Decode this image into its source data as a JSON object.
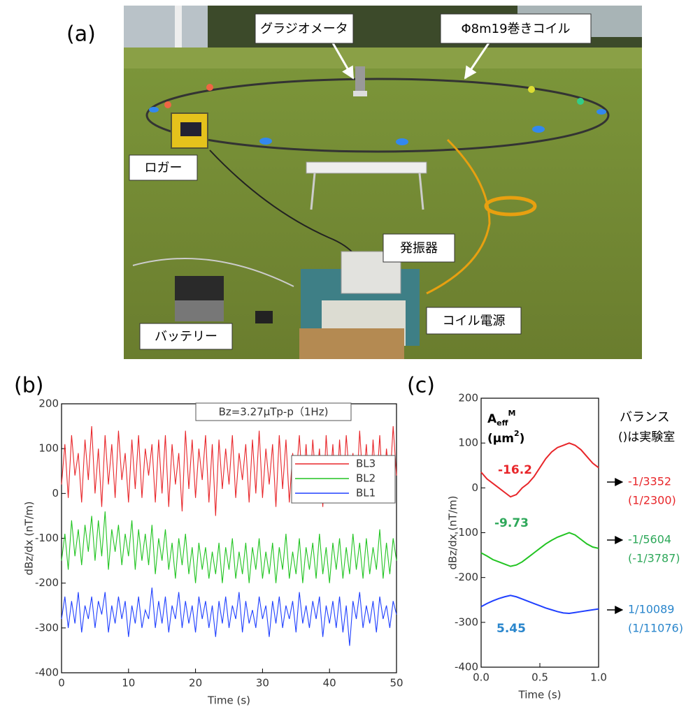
{
  "photo": {
    "panel_label": "(a)",
    "labels": [
      "グラジオメータ",
      "Φ8m19巻きコイル",
      "ロガー",
      "発振器",
      "バッテリー",
      "コイル電源"
    ]
  },
  "chart_data": [
    {
      "type": "line",
      "panel_label": "(b)",
      "xlabel": "Time (s)",
      "ylabel": "dBz/dx (nT/m)",
      "annotation": "Bz=3.27μTp-p（1Hz)",
      "xlim": [
        0,
        50
      ],
      "xticks": [
        0,
        10,
        20,
        30,
        40,
        50
      ],
      "ylim": [
        -400,
        200
      ],
      "yticks": [
        -400,
        -300,
        -200,
        -100,
        0,
        100,
        200
      ],
      "legend": "right",
      "x": [
        0,
        0.5,
        1,
        1.5,
        2,
        2.5,
        3,
        3.5,
        4,
        4.5,
        5,
        5.5,
        6,
        6.5,
        7,
        7.5,
        8,
        8.5,
        9,
        9.5,
        10,
        10.5,
        11,
        11.5,
        12,
        12.5,
        13,
        13.5,
        14,
        14.5,
        15,
        15.5,
        16,
        16.5,
        17,
        17.5,
        18,
        18.5,
        19,
        19.5,
        20,
        20.5,
        21,
        21.5,
        22,
        22.5,
        23,
        23.5,
        24,
        24.5,
        25,
        25.5,
        26,
        26.5,
        27,
        27.5,
        28,
        28.5,
        29,
        29.5,
        30,
        30.5,
        31,
        31.5,
        32,
        32.5,
        33,
        33.5,
        34,
        34.5,
        35,
        35.5,
        36,
        36.5,
        37,
        37.5,
        38,
        38.5,
        39,
        39.5,
        40,
        40.5,
        41,
        41.5,
        42,
        42.5,
        43,
        43.5,
        44,
        44.5,
        45,
        45.5,
        46,
        46.5,
        47,
        47.5,
        48,
        48.5,
        49,
        49.5,
        50
      ],
      "series": [
        {
          "name": "BL3",
          "color": "#e8262a",
          "values": [
            20,
            110,
            -10,
            130,
            40,
            90,
            -20,
            120,
            30,
            150,
            0,
            100,
            -30,
            130,
            20,
            110,
            -10,
            140,
            30,
            90,
            -20,
            120,
            10,
            130,
            -10,
            100,
            40,
            110,
            -20,
            120,
            0,
            130,
            -30,
            110,
            20,
            90,
            -40,
            140,
            10,
            120,
            -10,
            100,
            30,
            130,
            -20,
            110,
            -50,
            120,
            10,
            100,
            20,
            130,
            -10,
            90,
            30,
            110,
            -20,
            120,
            0,
            140,
            -10,
            100,
            20,
            110,
            -30,
            130,
            10,
            120,
            -20,
            90,
            30,
            130,
            0,
            110,
            -10,
            120,
            20,
            100,
            -30,
            130,
            10,
            110,
            -20,
            120,
            0,
            130,
            30,
            90,
            -10,
            140,
            20,
            110,
            -20,
            120,
            10,
            130,
            -10,
            100,
            20,
            150,
            40
          ]
        },
        {
          "name": "BL2",
          "color": "#22c422",
          "values": [
            -150,
            -90,
            -170,
            -60,
            -140,
            -80,
            -160,
            -70,
            -130,
            -50,
            -150,
            -60,
            -140,
            -40,
            -170,
            -80,
            -130,
            -70,
            -160,
            -90,
            -140,
            -60,
            -170,
            -80,
            -150,
            -90,
            -160,
            -70,
            -180,
            -100,
            -150,
            -80,
            -170,
            -110,
            -190,
            -100,
            -160,
            -90,
            -180,
            -120,
            -200,
            -110,
            -170,
            -120,
            -190,
            -130,
            -180,
            -110,
            -200,
            -120,
            -170,
            -100,
            -190,
            -130,
            -180,
            -110,
            -200,
            -120,
            -170,
            -100,
            -190,
            -130,
            -180,
            -110,
            -200,
            -120,
            -170,
            -90,
            -190,
            -130,
            -180,
            -100,
            -200,
            -120,
            -170,
            -110,
            -190,
            -90,
            -180,
            -120,
            -200,
            -110,
            -170,
            -100,
            -190,
            -120,
            -180,
            -90,
            -170,
            -110,
            -190,
            -100,
            -180,
            -120,
            -170,
            -80,
            -190,
            -110,
            -180,
            -100,
            -150
          ]
        },
        {
          "name": "BL1",
          "color": "#2040ff",
          "values": [
            -280,
            -230,
            -300,
            -240,
            -290,
            -220,
            -310,
            -250,
            -280,
            -230,
            -300,
            -240,
            -270,
            -220,
            -310,
            -250,
            -290,
            -230,
            -280,
            -240,
            -320,
            -250,
            -290,
            -230,
            -300,
            -260,
            -280,
            -210,
            -300,
            -240,
            -290,
            -230,
            -310,
            -250,
            -280,
            -220,
            -300,
            -240,
            -290,
            -250,
            -310,
            -230,
            -280,
            -240,
            -300,
            -250,
            -320,
            -240,
            -290,
            -230,
            -300,
            -250,
            -280,
            -220,
            -310,
            -240,
            -290,
            -260,
            -300,
            -230,
            -280,
            -250,
            -320,
            -240,
            -290,
            -230,
            -300,
            -250,
            -280,
            -240,
            -310,
            -220,
            -290,
            -250,
            -300,
            -240,
            -280,
            -230,
            -320,
            -250,
            -290,
            -240,
            -300,
            -230,
            -310,
            -250,
            -340,
            -240,
            -280,
            -220,
            -300,
            -250,
            -290,
            -240,
            -310,
            -230,
            -280,
            -250,
            -300,
            -240,
            -270
          ]
        }
      ]
    },
    {
      "type": "line",
      "panel_label": "(c)",
      "xlabel": "Time (s)",
      "ylabel": "dBz/dx (nT/m)",
      "xlim": [
        0,
        1
      ],
      "xticks": [
        {
          "value": 0,
          "label": "0.0"
        },
        0.5,
        {
          "value": 1,
          "label": "1.0"
        }
      ],
      "ylim": [
        -400,
        200
      ],
      "yticks": [
        -400,
        -300,
        -200,
        -100,
        0,
        100,
        200
      ],
      "x": [
        0,
        0.05,
        0.1,
        0.15,
        0.2,
        0.25,
        0.3,
        0.35,
        0.4,
        0.45,
        0.5,
        0.55,
        0.6,
        0.65,
        0.7,
        0.75,
        0.8,
        0.85,
        0.9,
        0.95,
        1
      ],
      "series": [
        {
          "color": "#e8262a",
          "values": [
            35,
            20,
            10,
            0,
            -10,
            -20,
            -15,
            0,
            10,
            25,
            45,
            65,
            80,
            90,
            95,
            100,
            95,
            85,
            70,
            55,
            45
          ]
        },
        {
          "color": "#22c422",
          "values": [
            -145,
            -152,
            -160,
            -165,
            -170,
            -175,
            -172,
            -165,
            -155,
            -145,
            -135,
            -125,
            -117,
            -110,
            -105,
            -100,
            -105,
            -115,
            -125,
            -132,
            -135
          ]
        },
        {
          "color": "#2040ff",
          "values": [
            -265,
            -258,
            -252,
            -247,
            -243,
            -240,
            -243,
            -248,
            -253,
            -258,
            -263,
            -268,
            -272,
            -276,
            -279,
            -280,
            -278,
            -276,
            -274,
            -272,
            -270
          ]
        }
      ],
      "aeff_label": {
        "base": "A",
        "sub": "eff",
        "sup": "M"
      },
      "aeff_unit": {
        "text": "(μm",
        "sup": "2",
        "close": ")"
      },
      "annotations": [
        {
          "text": "-16.2",
          "color": "#e8262a"
        },
        {
          "text": "-9.73",
          "color": "#2ea85a"
        },
        {
          "text": "5.45",
          "color": "#2a86cc"
        }
      ],
      "balance_title": "バランス",
      "balance_note": "()は実験室",
      "balances": [
        {
          "ratio": "-1/3352",
          "lab": "(1/2300)",
          "color": "#e8262a"
        },
        {
          "ratio": "-1/5604",
          "lab": "(-1/3787)",
          "color": "#2ea85a"
        },
        {
          "ratio": "1/10089",
          "lab": "(1/11076)",
          "color": "#2a86cc"
        }
      ]
    }
  ]
}
